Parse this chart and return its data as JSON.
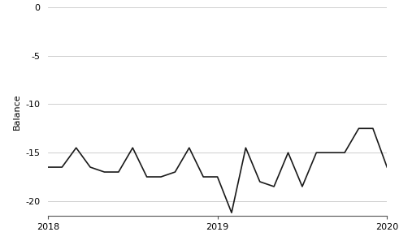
{
  "x": [
    2018.0,
    2018.0833,
    2018.1667,
    2018.25,
    2018.3333,
    2018.4167,
    2018.5,
    2018.5833,
    2018.6667,
    2018.75,
    2018.8333,
    2018.9167,
    2019.0,
    2019.0833,
    2019.1667,
    2019.25,
    2019.3333,
    2019.4167,
    2019.5,
    2019.5833,
    2019.6667,
    2019.75,
    2019.8333,
    2019.9167,
    2020.0
  ],
  "y": [
    -16.5,
    -16.5,
    -14.5,
    -16.5,
    -17.0,
    -17.0,
    -14.5,
    -17.5,
    -17.5,
    -17.0,
    -14.5,
    -17.5,
    -17.5,
    -21.2,
    -14.5,
    -18.0,
    -18.5,
    -15.0,
    -18.5,
    -15.0,
    -15.0,
    -15.0,
    -12.5,
    -12.5,
    -16.5
  ],
  "xlim": [
    2018.0,
    2020.0
  ],
  "ylim": [
    -21.5,
    0
  ],
  "yticks": [
    0,
    -5,
    -10,
    -15,
    -20
  ],
  "xticks": [
    2018,
    2019,
    2020
  ],
  "ylabel": "Balance",
  "ylabel_fontsize": 8,
  "tick_fontsize": 8,
  "line_color": "#1a1a1a",
  "line_width": 1.2,
  "grid_color": "#c8c8c8",
  "bg_color": "#ffffff"
}
